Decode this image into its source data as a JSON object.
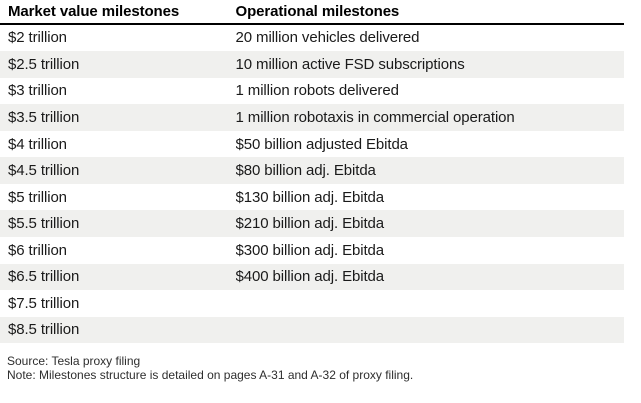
{
  "chart_data": {
    "type": "table",
    "columns": [
      "Market value milestones",
      "Operational milestones"
    ],
    "rows": [
      [
        "$2 trillion",
        "20 million vehicles delivered"
      ],
      [
        "$2.5 trillion",
        "10 million active FSD subscriptions"
      ],
      [
        "$3 trillion",
        "1 million robots delivered"
      ],
      [
        "$3.5 trillion",
        "1 million robotaxis in commercial operation"
      ],
      [
        "$4 trillion",
        "$50 billion adjusted Ebitda"
      ],
      [
        "$4.5 trillion",
        "$80 billion adj. Ebitda"
      ],
      [
        "$5 trillion",
        "$130 billion adj. Ebitda"
      ],
      [
        "$5.5 trillion",
        "$210 billion adj. Ebitda"
      ],
      [
        "$6 trillion",
        "$300 billion adj. Ebitda"
      ],
      [
        "$6.5 trillion",
        "$400 billion adj. Ebitda"
      ],
      [
        "$7.5 trillion",
        ""
      ],
      [
        "$8.5 trillion",
        ""
      ]
    ],
    "layout": {
      "zebra": true,
      "striped_rows": "odd",
      "grid": false,
      "header_rule": true
    }
  },
  "footer": {
    "source": "Source: Tesla proxy filing",
    "note": "Note: Milestones structure is detailed on pages A-31 and A-32 of proxy filing."
  },
  "colors": {
    "background": "#ffffff",
    "stripe": "#f0f0ee",
    "header_rule": "#000000",
    "header_text": "#000000",
    "body_text": "#1a1a1a",
    "note_text": "#2e2e2e"
  }
}
